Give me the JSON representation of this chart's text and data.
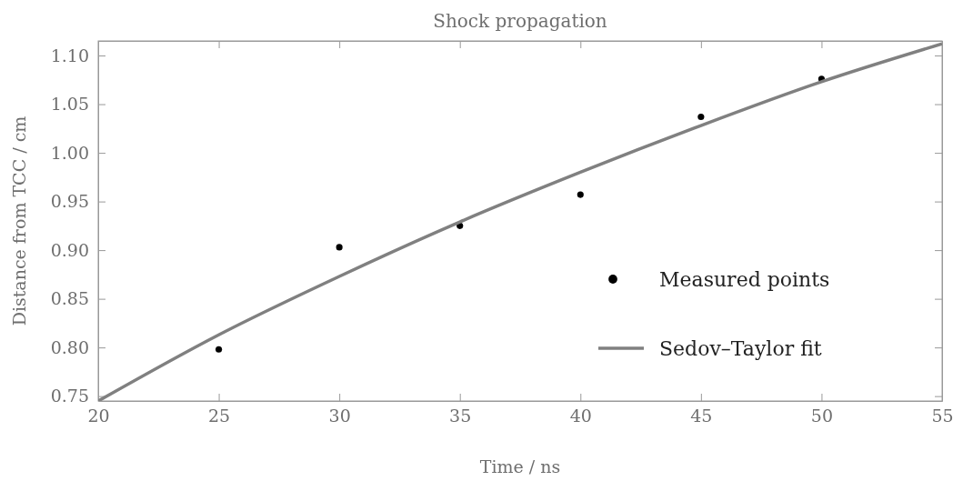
{
  "chart_data": {
    "type": "scatter",
    "title": "Shock propagation",
    "xlabel": "Time / ns",
    "ylabel": "Distance from TCC / cm",
    "xlim": [
      20,
      55
    ],
    "xticks": [
      20,
      25,
      30,
      35,
      40,
      45,
      50,
      55
    ],
    "ylim": [
      0.745,
      1.115
    ],
    "yticks": [
      0.75,
      {
        "value": 0.8,
        "label": "0.80"
      },
      0.85,
      {
        "value": 0.9,
        "label": "0.90"
      },
      0.95,
      {
        "value": 1.0,
        "label": "1.00"
      },
      1.05,
      {
        "value": 1.1,
        "label": "1.10"
      }
    ],
    "legend": "bottom right",
    "grid": false,
    "series": [
      {
        "name": "Measured points",
        "color": "#000000",
        "marker": "circle",
        "x": [
          25,
          30,
          35,
          40,
          45,
          50
        ],
        "values": [
          0.798,
          0.903,
          0.925,
          0.957,
          1.037,
          1.076
        ]
      },
      {
        "name": "Sedov–Taylor fit",
        "type": "line",
        "color": "#808080",
        "line_style": "solid",
        "x": [
          20,
          25,
          30,
          35,
          40,
          45,
          50,
          55
        ],
        "values": [
          0.745,
          0.813,
          0.873,
          0.929,
          0.98,
          1.028,
          1.073,
          1.112
        ]
      }
    ]
  }
}
